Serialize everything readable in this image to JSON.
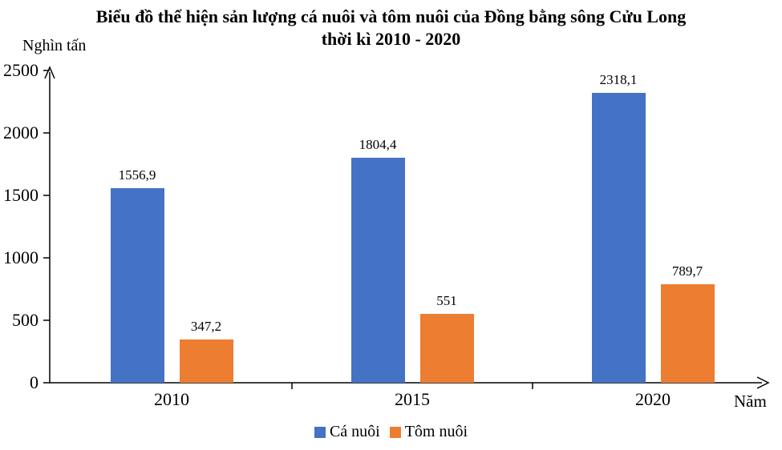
{
  "chart_data": {
    "type": "bar",
    "title": "Biểu đồ thể hiện sản lượng cá nuôi và tôm nuôi của Đồng bằng sông Cửu Long thời kì 2010 - 2020",
    "title_line1": "Biểu đồ thể hiện sản lượng cá nuôi và tôm nuôi của Đồng bằng sông Cửu Long",
    "title_line2": "thời kì 2010 - 2020",
    "ylabel": "Nghìn tấn",
    "xlabel": "Năm",
    "categories": [
      "2010",
      "2015",
      "2020"
    ],
    "series": [
      {
        "name": "Cá nuôi",
        "color": "#4472C4",
        "values": [
          1556.9,
          1804.4,
          2318.1
        ],
        "data_labels": [
          "1556,9",
          "1804,4",
          "2318,1"
        ]
      },
      {
        "name": "Tôm nuôi",
        "color": "#ED7D31",
        "values": [
          347.2,
          551,
          789.7
        ],
        "data_labels": [
          "347,2",
          "551",
          "789,7"
        ]
      }
    ],
    "ylim": [
      0,
      2500
    ],
    "yticks": [
      0,
      500,
      1000,
      1500,
      2000,
      2500
    ],
    "grid": false,
    "legend_position": "bottom",
    "axis_color": "#000000",
    "text_color": "#000000"
  }
}
